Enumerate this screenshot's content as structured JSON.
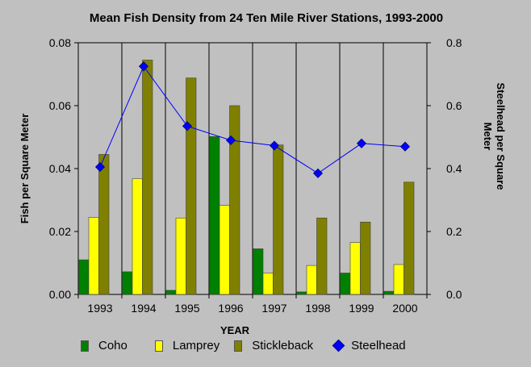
{
  "chart_data": {
    "type": "bar",
    "title": "Mean Fish Density from 24 Ten Mile River Stations, 1993-2000",
    "xlabel": "YEAR",
    "ylabel": "Fish per Square Meter",
    "y2label_line1": "Steelhead per Square",
    "y2label_line2": "Meter",
    "categories": [
      "1993",
      "1994",
      "1995",
      "1996",
      "1997",
      "1998",
      "1999",
      "2000"
    ],
    "ylim": [
      0,
      0.08
    ],
    "y2lim": [
      0,
      0.8
    ],
    "yticks": [
      "0.00",
      "0.02",
      "0.04",
      "0.06",
      "0.08"
    ],
    "y2ticks": [
      "0.0",
      "0.2",
      "0.4",
      "0.6",
      "0.8"
    ],
    "series": [
      {
        "name": "Coho",
        "type": "bar",
        "axis": "left",
        "color": "#008000",
        "values": [
          0.011,
          0.0072,
          0.0013,
          0.0502,
          0.0145,
          0.0008,
          0.0068,
          0.001
        ]
      },
      {
        "name": "Lamprey",
        "type": "bar",
        "axis": "left",
        "color": "#ffff00",
        "values": [
          0.0245,
          0.0368,
          0.0243,
          0.0283,
          0.0068,
          0.0092,
          0.0165,
          0.0095
        ]
      },
      {
        "name": "Stickleback",
        "type": "bar",
        "axis": "left",
        "color": "#808000",
        "values": [
          0.0445,
          0.0745,
          0.0688,
          0.06,
          0.0475,
          0.0243,
          0.023,
          0.0357
        ]
      },
      {
        "name": "Steelhead",
        "type": "line",
        "axis": "right",
        "color": "#0000ff",
        "values": [
          0.405,
          0.725,
          0.535,
          0.49,
          0.473,
          0.385,
          0.48,
          0.47
        ]
      }
    ],
    "grid": true,
    "legend_position": "bottom"
  }
}
